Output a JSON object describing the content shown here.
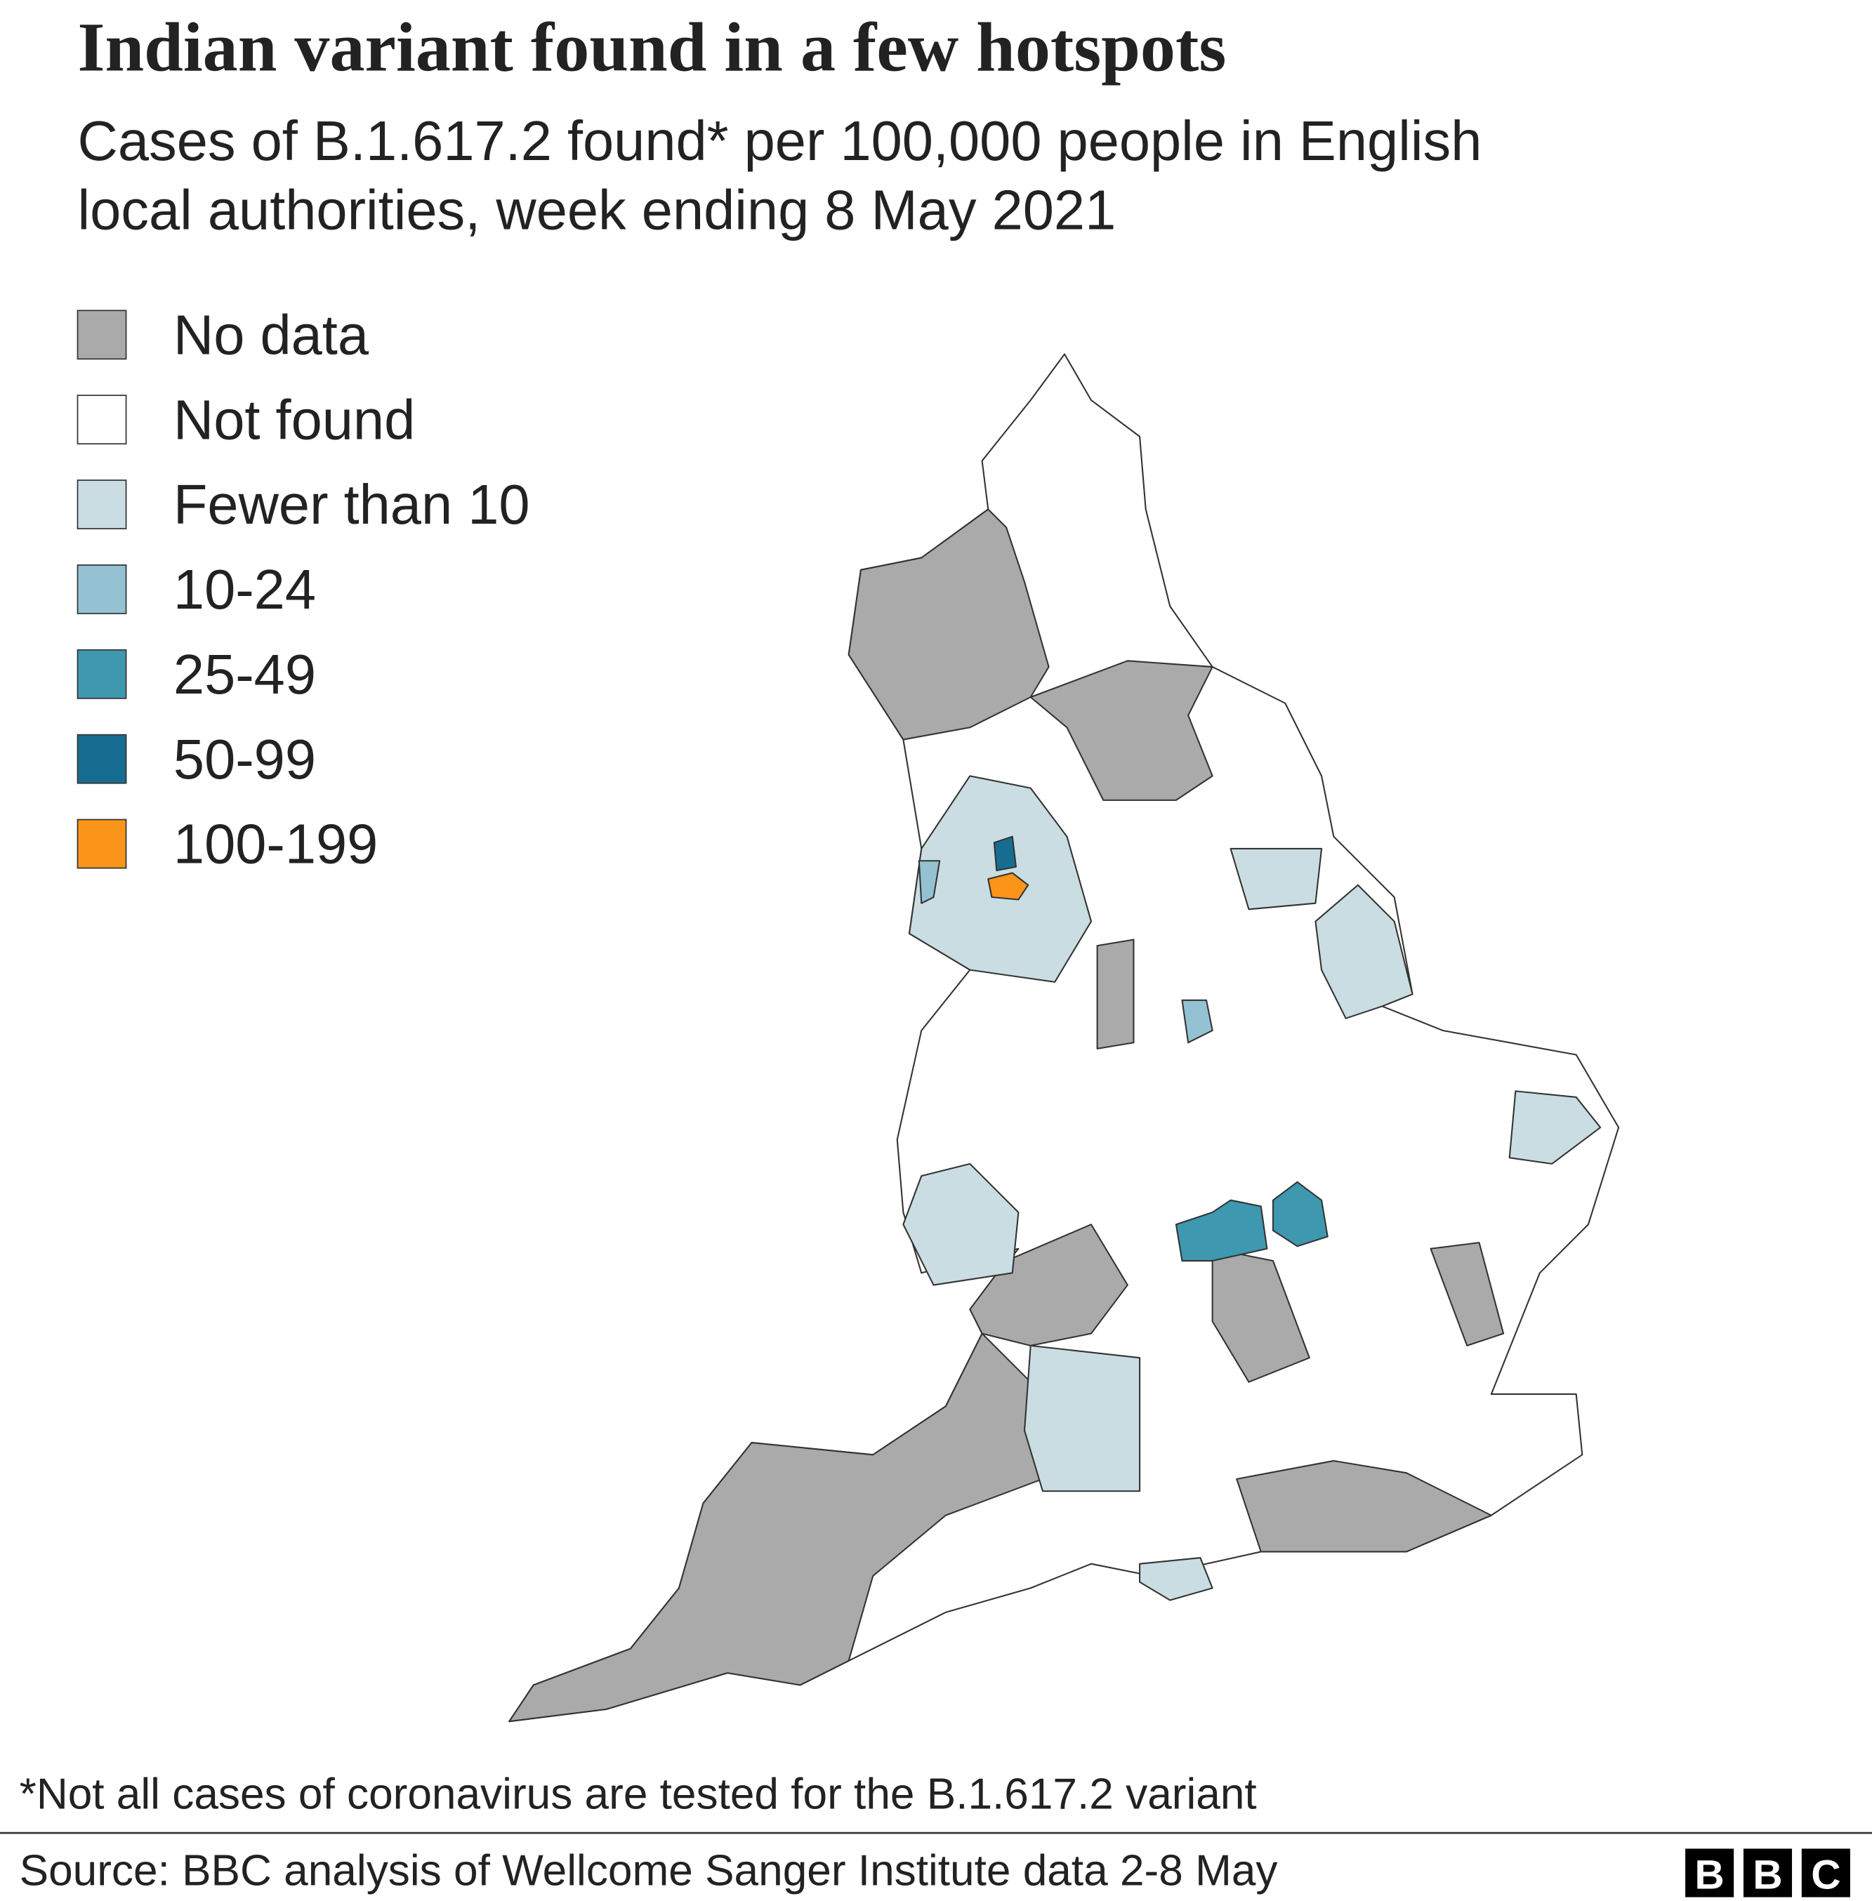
{
  "header": {
    "title": "Indian variant found in a few hotspots",
    "subtitle": [
      "Cases of B.1.617.2 found* per 100,000 people in English",
      "local authorities, week ending 8 May 2021"
    ]
  },
  "legend": [
    {
      "label": "No data",
      "color": "#aaaaaa"
    },
    {
      "label": "Not found",
      "color": "#ffffff"
    },
    {
      "label": "Fewer than 10",
      "color": "#c9dde2"
    },
    {
      "label": "10-24",
      "color": "#95c2d3"
    },
    {
      "label": "25-49",
      "color": "#3e98af"
    },
    {
      "label": "50-99",
      "color": "#176d91"
    },
    {
      "label": "100-199",
      "color": "#fa9519"
    }
  ],
  "footnote": "*Not all cases of coronavirus are tested for the B.1.617.2 variant",
  "source": "Source: BBC analysis of Wellcome Sanger Institute data 2-8 May",
  "logo": [
    "B",
    "B",
    "C"
  ]
}
